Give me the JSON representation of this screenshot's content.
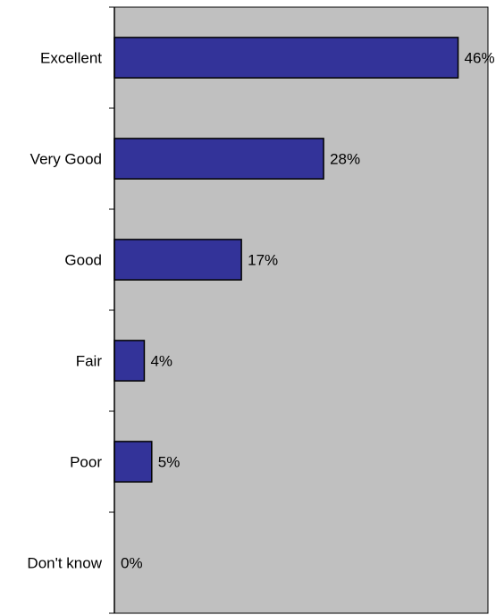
{
  "chart_data": {
    "type": "bar",
    "orientation": "horizontal",
    "categories": [
      "Excellent",
      "Very Good",
      "Good",
      "Fair",
      "Poor",
      "Don't know"
    ],
    "values": [
      46,
      28,
      17,
      4,
      5,
      0
    ],
    "value_labels": [
      "46%",
      "28%",
      "17%",
      "4%",
      "5%",
      "0%"
    ],
    "xlim": [
      0,
      50
    ],
    "grid": false,
    "legend": "none",
    "colors": {
      "bar_fill": "#333399",
      "bar_stroke": "#000000",
      "plot_background": "#c0c0c0"
    }
  }
}
